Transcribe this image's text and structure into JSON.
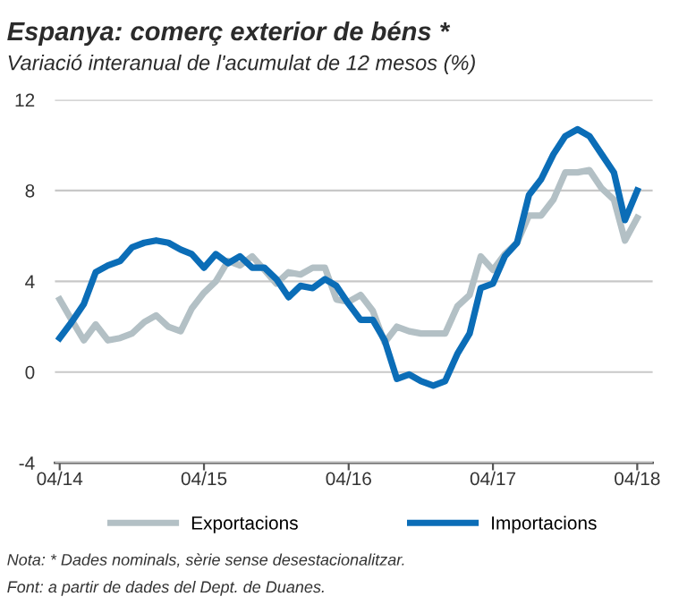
{
  "chart_data": {
    "type": "line",
    "title": "Espanya: comerç exterior de béns *",
    "subtitle": "Variació interanual de l'acumulat de 12 mesos (%)",
    "x": [
      "2014-04",
      "2014-05",
      "2014-06",
      "2014-07",
      "2014-08",
      "2014-09",
      "2014-10",
      "2014-11",
      "2014-12",
      "2015-01",
      "2015-02",
      "2015-03",
      "2015-04",
      "2015-05",
      "2015-06",
      "2015-07",
      "2015-08",
      "2015-09",
      "2015-10",
      "2015-11",
      "2015-12",
      "2016-01",
      "2016-02",
      "2016-03",
      "2016-04",
      "2016-05",
      "2016-06",
      "2016-07",
      "2016-08",
      "2016-09",
      "2016-10",
      "2016-11",
      "2016-12",
      "2017-01",
      "2017-02",
      "2017-03",
      "2017-04",
      "2017-05",
      "2017-06",
      "2017-07",
      "2017-08",
      "2017-09",
      "2017-10",
      "2017-11",
      "2017-12",
      "2018-01",
      "2018-02",
      "2018-03",
      "2018-04"
    ],
    "series": [
      {
        "name": "Exportacions",
        "color": "#b3c0c5",
        "values": [
          3.2,
          2.3,
          1.4,
          2.1,
          1.4,
          1.5,
          1.7,
          2.2,
          2.5,
          2.0,
          1.8,
          2.8,
          3.5,
          4.0,
          4.9,
          4.7,
          5.1,
          4.5,
          3.9,
          4.4,
          4.3,
          4.6,
          4.6,
          3.2,
          3.1,
          3.4,
          2.7,
          1.3,
          2.0,
          1.8,
          1.7,
          1.7,
          1.7,
          2.9,
          3.4,
          5.1,
          4.5,
          5.2,
          5.7,
          6.9,
          6.9,
          7.6,
          8.8,
          8.8,
          8.9,
          8.1,
          7.6,
          5.8,
          6.8
        ]
      },
      {
        "name": "Importacions",
        "color": "#0b6db7",
        "values": [
          1.5,
          2.2,
          3.0,
          4.4,
          4.7,
          4.9,
          5.5,
          5.7,
          5.8,
          5.7,
          5.4,
          5.2,
          4.6,
          5.2,
          4.8,
          5.1,
          4.6,
          4.6,
          4.1,
          3.3,
          3.8,
          3.7,
          4.1,
          3.8,
          3.0,
          2.3,
          2.3,
          1.4,
          -0.3,
          -0.1,
          -0.4,
          -0.6,
          -0.4,
          0.8,
          1.7,
          3.7,
          3.9,
          5.1,
          5.7,
          7.8,
          8.5,
          9.6,
          10.4,
          10.7,
          10.4,
          9.6,
          8.8,
          6.7,
          8.0
        ]
      }
    ],
    "xlim": [
      "2014-03-20",
      "2018-05-10"
    ],
    "xticks": [
      {
        "value": "2014-04",
        "label": "04/14"
      },
      {
        "value": "2015-04",
        "label": "04/15"
      },
      {
        "value": "2016-04",
        "label": "04/16"
      },
      {
        "value": "2017-04",
        "label": "04/17"
      },
      {
        "value": "2018-04",
        "label": "04/18"
      }
    ],
    "ylim": [
      -4,
      12
    ],
    "yticks": [
      -4,
      0,
      4,
      8,
      12
    ],
    "grid": "y",
    "legend": "bottom",
    "line_style": "solid",
    "marker": "none",
    "annotations": [
      "Nota: * Dades nominals, sèrie sense desestacionalitzar.",
      "Font: a partir de dades del Dept. de Duanes."
    ]
  }
}
